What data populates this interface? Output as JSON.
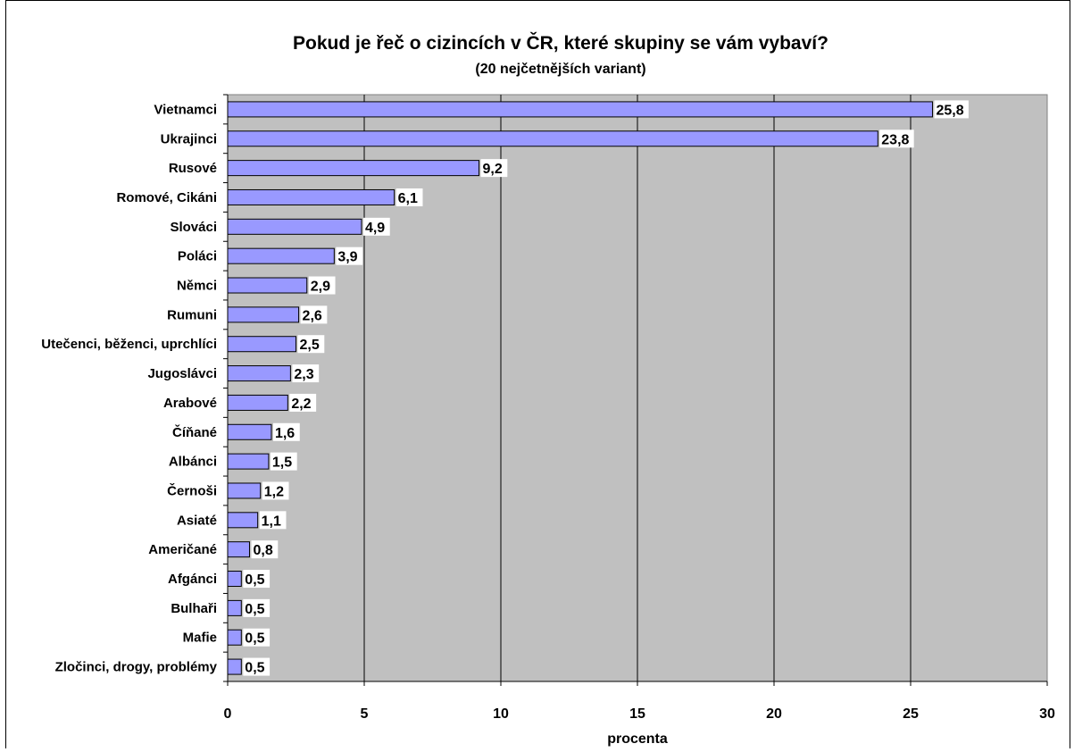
{
  "chart_data": {
    "type": "bar",
    "orientation": "horizontal",
    "title": "Pokud je řeč o cizincích v ČR, které skupiny se vám vybaví?",
    "subtitle": "(20 nejčetnějších variant)",
    "xlabel": "procenta",
    "ylabel": "",
    "xlim": [
      0,
      30
    ],
    "xticks": [
      0,
      5,
      10,
      15,
      20,
      25,
      30
    ],
    "grid": true,
    "categories": [
      "Vietnamci",
      "Ukrajinci",
      "Rusové",
      "Romové, Cikáni",
      "Slováci",
      "Poláci",
      "Němci",
      "Rumuni",
      "Utečenci, běženci, uprchlíci",
      "Jugoslávci",
      "Arabové",
      "Číňané",
      "Albánci",
      "Černoši",
      "Asiaté",
      "Američané",
      "Afgánci",
      "Bulhaři",
      "Mafie",
      "Zločinci, drogy, problémy"
    ],
    "values": [
      25.8,
      23.8,
      9.2,
      6.1,
      4.9,
      3.9,
      2.9,
      2.6,
      2.5,
      2.3,
      2.2,
      1.6,
      1.5,
      1.2,
      1.1,
      0.8,
      0.5,
      0.5,
      0.5,
      0.5
    ],
    "data_labels": [
      "25,8",
      "23,8",
      "9,2",
      "6,1",
      "4,9",
      "3,9",
      "2,9",
      "2,6",
      "2,5",
      "2,3",
      "2,2",
      "1,6",
      "1,5",
      "1,2",
      "1,1",
      "0,8",
      "0,5",
      "0,5",
      "0,5",
      "0,5"
    ],
    "colors": {
      "bar": "#9999ff",
      "plot_bg": "#c0c0c0",
      "grid": "#000000"
    }
  }
}
